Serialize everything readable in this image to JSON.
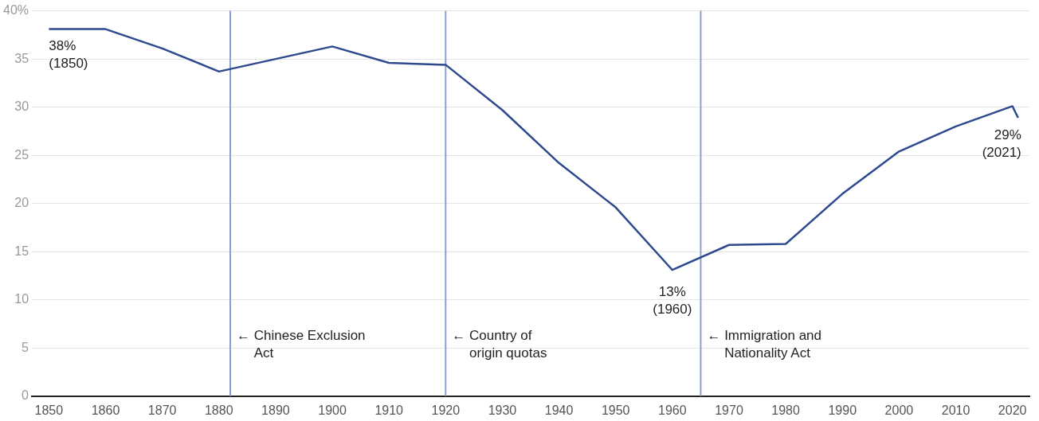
{
  "chart_data": {
    "type": "line",
    "x": [
      1850,
      1860,
      1870,
      1880,
      1890,
      1900,
      1910,
      1920,
      1930,
      1940,
      1950,
      1960,
      1970,
      1980,
      1990,
      2000,
      2010,
      2020,
      2021
    ],
    "series": [
      {
        "color": "#2e4a8f",
        "values": [
          38.1,
          38.1,
          36.1,
          33.7,
          35.0,
          36.3,
          34.6,
          34.4,
          29.7,
          24.2,
          19.6,
          13.1,
          15.7,
          15.8,
          21.0,
          25.4,
          28.0,
          30.1,
          28.9
        ]
      }
    ],
    "xlim": [
      1847,
      2023
    ],
    "xticks": [
      1850,
      1860,
      1870,
      1880,
      1890,
      1900,
      1910,
      1920,
      1930,
      1940,
      1950,
      1960,
      1970,
      1980,
      1990,
      2000,
      2010,
      2020
    ],
    "ylim": [
      0,
      40
    ],
    "yticks": [
      0,
      5,
      10,
      15,
      20,
      25,
      30,
      35,
      {
        "value": 40,
        "label": "40%"
      }
    ],
    "grid": "y",
    "legend": false,
    "marker": "none",
    "line_style": "solid",
    "ref_lines": [
      {
        "axis": "x",
        "value": 1882,
        "label": "← Chinese Exclusion\nAct",
        "color": "#8b9ed0"
      },
      {
        "axis": "x",
        "value": 1920,
        "label": "← Country of\norigin quotas",
        "color": "#8b9ed0"
      },
      {
        "axis": "x",
        "value": 1965,
        "label": "← Immigration and\nNationality Act",
        "color": "#8b9ed0"
      }
    ],
    "annotations": [
      {
        "text": "38%\n(1850)",
        "x": 1850,
        "y": 38.1
      },
      {
        "text": "13%\n(1960)",
        "x": 1960,
        "y": 13.1
      },
      {
        "text": "29%\n(2021)",
        "x": 2021,
        "y": 28.9
      }
    ]
  }
}
